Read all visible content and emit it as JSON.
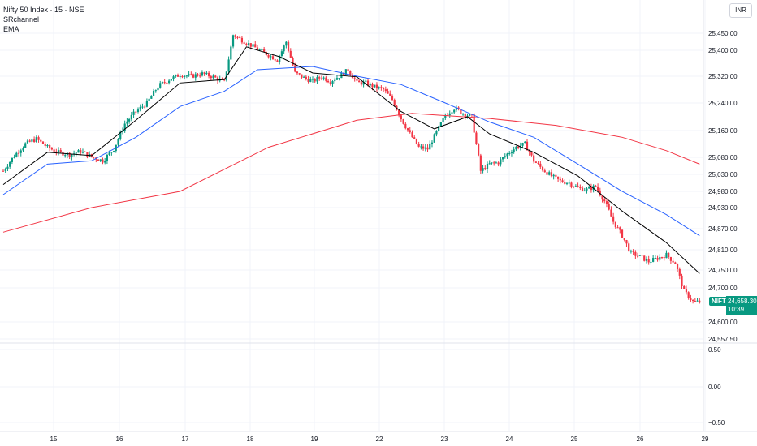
{
  "legend": {
    "title": "Nifty 50 Index · 15 · NSE",
    "indicator1": "SRchannel",
    "indicator2": "EMA"
  },
  "currency": "INR",
  "symbol_tag": "NIFTY",
  "last_price": "24,658.30",
  "countdown": "10:39",
  "colors": {
    "up": "#089981",
    "down": "#f23645",
    "ema_fast": "#000000",
    "ema_mid": "#2962ff",
    "ema_slow": "#f23645",
    "grid": "#f0f3fa",
    "price_line": "#089981"
  },
  "chart_data": [
    {
      "type": "candlestick",
      "panel": "price",
      "currency": "INR",
      "grid": true,
      "price_axis_ticks": [
        "25,450.00",
        "25,400.00",
        "25,320.00",
        "25,240.00",
        "25,160.00",
        "25,080.00",
        "25,030.00",
        "24,980.00",
        "24,930.00",
        "24,870.00",
        "24,810.00",
        "24,750.00",
        "24,700.00",
        "24,600.00",
        "24,557.50"
      ],
      "date_ticks": [
        "15",
        "16",
        "17",
        "18",
        "19",
        "22",
        "23",
        "24",
        "25",
        "26",
        "29"
      ],
      "ylim": [
        24550,
        25480
      ],
      "close_path": [
        [
          0,
          25040
        ],
        [
          5,
          25085
        ],
        [
          10,
          25120
        ],
        [
          15,
          25135
        ],
        [
          20,
          25110
        ],
        [
          25,
          25095
        ],
        [
          30,
          25088
        ],
        [
          35,
          25098
        ],
        [
          40,
          25082
        ],
        [
          45,
          25070
        ],
        [
          50,
          25105
        ],
        [
          55,
          25180
        ],
        [
          60,
          25215
        ],
        [
          65,
          25240
        ],
        [
          70,
          25290
        ],
        [
          75,
          25310
        ],
        [
          80,
          25325
        ],
        [
          85,
          25320
        ],
        [
          90,
          25328
        ],
        [
          95,
          25318
        ],
        [
          100,
          25302
        ],
        [
          104,
          25445
        ],
        [
          108,
          25430
        ],
        [
          112,
          25415
        ],
        [
          116,
          25400
        ],
        [
          120,
          25385
        ],
        [
          124,
          25370
        ],
        [
          128,
          25425
        ],
        [
          132,
          25330
        ],
        [
          136,
          25315
        ],
        [
          140,
          25305
        ],
        [
          144,
          25318
        ],
        [
          148,
          25305
        ],
        [
          152,
          25320
        ],
        [
          156,
          25340
        ],
        [
          160,
          25300
        ],
        [
          164,
          25300
        ],
        [
          168,
          25288
        ],
        [
          172,
          25280
        ],
        [
          176,
          25250
        ],
        [
          180,
          25195
        ],
        [
          184,
          25150
        ],
        [
          188,
          25110
        ],
        [
          192,
          25105
        ],
        [
          196,
          25155
        ],
        [
          200,
          25205
        ],
        [
          204,
          25225
        ],
        [
          208,
          25210
        ],
        [
          212,
          25200
        ],
        [
          216,
          25040
        ],
        [
          220,
          25060
        ],
        [
          224,
          25065
        ],
        [
          228,
          25090
        ],
        [
          232,
          25110
        ],
        [
          236,
          25120
        ],
        [
          240,
          25070
        ],
        [
          244,
          25045
        ],
        [
          248,
          25025
        ],
        [
          252,
          25010
        ],
        [
          256,
          25005
        ],
        [
          260,
          24990
        ],
        [
          264,
          24985
        ],
        [
          268,
          24995
        ],
        [
          272,
          24950
        ],
        [
          276,
          24890
        ],
        [
          280,
          24850
        ],
        [
          284,
          24800
        ],
        [
          288,
          24790
        ],
        [
          292,
          24775
        ],
        [
          296,
          24785
        ],
        [
          300,
          24795
        ],
        [
          304,
          24770
        ],
        [
          308,
          24690
        ],
        [
          312,
          24660
        ],
        [
          315,
          24658
        ]
      ],
      "ema_fast": [
        [
          0,
          25000
        ],
        [
          20,
          25095
        ],
        [
          40,
          25085
        ],
        [
          60,
          25190
        ],
        [
          80,
          25300
        ],
        [
          100,
          25310
        ],
        [
          110,
          25410
        ],
        [
          125,
          25380
        ],
        [
          140,
          25330
        ],
        [
          160,
          25318
        ],
        [
          180,
          25215
        ],
        [
          195,
          25165
        ],
        [
          210,
          25200
        ],
        [
          220,
          25150
        ],
        [
          240,
          25095
        ],
        [
          260,
          25025
        ],
        [
          280,
          24920
        ],
        [
          300,
          24830
        ],
        [
          315,
          24740
        ]
      ],
      "ema_mid": [
        [
          0,
          24970
        ],
        [
          20,
          25060
        ],
        [
          40,
          25070
        ],
        [
          60,
          25140
        ],
        [
          80,
          25230
        ],
        [
          100,
          25275
        ],
        [
          115,
          25340
        ],
        [
          140,
          25350
        ],
        [
          160,
          25320
        ],
        [
          180,
          25295
        ],
        [
          200,
          25240
        ],
        [
          220,
          25185
        ],
        [
          240,
          25140
        ],
        [
          260,
          25060
        ],
        [
          280,
          24980
        ],
        [
          300,
          24910
        ],
        [
          315,
          24850
        ]
      ],
      "ema_slow": [
        [
          0,
          24860
        ],
        [
          40,
          24930
        ],
        [
          80,
          24980
        ],
        [
          120,
          25110
        ],
        [
          160,
          25190
        ],
        [
          185,
          25210
        ],
        [
          220,
          25195
        ],
        [
          250,
          25175
        ],
        [
          280,
          25140
        ],
        [
          300,
          25100
        ],
        [
          315,
          25060
        ]
      ],
      "last_value": 24658.3
    },
    {
      "type": "line",
      "panel": "indicator",
      "axis_ticks": [
        "0.50",
        "0.00",
        "−0.50"
      ],
      "values": []
    }
  ]
}
